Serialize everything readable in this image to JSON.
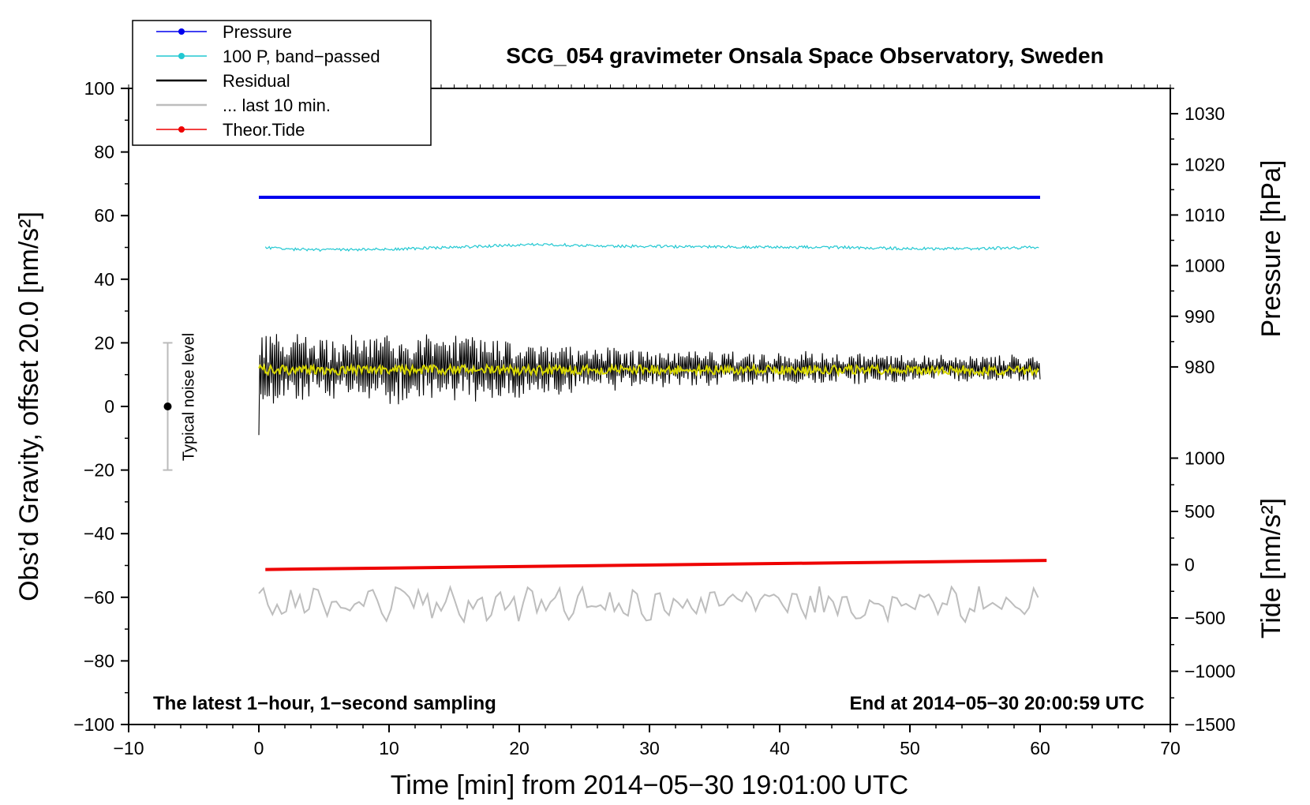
{
  "chart_data": {
    "type": "line",
    "title": "SCG_054 gravimeter Onsala Space Observatory, Sweden",
    "xlabel": "Time [min] from 2014−05−30 19:01:00 UTC",
    "ylabel": "Obs’d Gravity, offset 20.0 [nm/s²]",
    "ylabel_right_top": "Pressure [hPa]",
    "ylabel_right_bottom": "Tide [nm/s²]",
    "xlim": [
      -10,
      70
    ],
    "ylim": [
      -100,
      100
    ],
    "pressure_lim": [
      975,
      1035
    ],
    "tide_lim": [
      -1500,
      1500
    ],
    "x_ticks": [
      -10,
      0,
      10,
      20,
      30,
      40,
      50,
      60,
      70
    ],
    "x_tick_labels": [
      "−10",
      "0",
      "10",
      "20",
      "30",
      "40",
      "50",
      "60",
      "70"
    ],
    "y_ticks": [
      -100,
      -80,
      -60,
      -40,
      -20,
      0,
      20,
      40,
      60,
      80,
      100
    ],
    "y_tick_labels": [
      "−100",
      "−80",
      "−60",
      "−40",
      "−20",
      "0",
      "20",
      "40",
      "60",
      "80",
      "100"
    ],
    "pressure_ticks": [
      980,
      990,
      1000,
      1010,
      1020,
      1030
    ],
    "pressure_tick_labels": [
      "980",
      "990",
      "1000",
      "1010",
      "1020",
      "1030"
    ],
    "tide_ticks": [
      -1500,
      -1000,
      -500,
      0,
      500,
      1000
    ],
    "tide_tick_labels": [
      "−1500",
      "−1000",
      "−500",
      "0",
      "500",
      "1000"
    ],
    "legend": [
      {
        "name": "Pressure",
        "color": "#0000ee",
        "style": "line-dot"
      },
      {
        "name": "100 P, band−passed",
        "color": "#22c8d2",
        "style": "line-dot"
      },
      {
        "name": "Residual",
        "color": "#000000",
        "style": "line"
      },
      {
        "name": "... last 10 min.",
        "color": "#bdbdbd",
        "style": "line"
      },
      {
        "name": "Theor.Tide",
        "color": "#ee0000",
        "style": "line-dot"
      }
    ],
    "legend_position": "top-left",
    "annotations": {
      "bottom_left": "The latest 1−hour, 1−second sampling",
      "bottom_right": "End at 2014−05−30 20:00:59 UTC",
      "noise_label": "Typical noise level"
    },
    "noise_bar": {
      "x": -7,
      "center": 0,
      "low": -20,
      "high": 20
    },
    "series": [
      {
        "name": "Pressure",
        "axis": "pressure",
        "color": "#0000ee",
        "x_start": 0,
        "x_end": 60,
        "level": 1013.5
      },
      {
        "name": "100 P, band−passed",
        "axis": "left",
        "color": "#22c8d2",
        "x_start": 0.5,
        "x_end": 60,
        "profile_x": [
          0.5,
          2,
          5,
          10,
          15,
          20,
          22,
          25,
          30,
          35,
          40,
          45,
          50,
          55,
          60
        ],
        "profile_y": [
          50,
          49.5,
          49.2,
          49.5,
          50,
          50.8,
          51,
          50.5,
          50.3,
          50.2,
          50.1,
          50,
          49.6,
          49.6,
          50.1
        ]
      },
      {
        "name": "Residual",
        "axis": "left",
        "color": "#000000",
        "x_start": 0,
        "x_end": 60,
        "center": 12,
        "amp_x": [
          0,
          5,
          10,
          15,
          20,
          25,
          30,
          35,
          40,
          45,
          50,
          55,
          60
        ],
        "amp_y": [
          10,
          9,
          9,
          8.5,
          8,
          6,
          5,
          4.5,
          4,
          4.5,
          3.5,
          3.5,
          3.5
        ]
      },
      {
        "name": "Residual (smoothed)",
        "axis": "left",
        "color": "#d8d800",
        "x_start": 0,
        "x_end": 60,
        "center": 11.5
      },
      {
        "name": "... last 10 min.",
        "axis": "left",
        "color": "#bdbdbd",
        "x_start": 0,
        "x_end": 60,
        "center": -62
      },
      {
        "name": "Theor.Tide",
        "axis": "tide",
        "color": "#ee0000",
        "x": [
          0.5,
          60.5
        ],
        "y": [
          -45,
          40
        ]
      }
    ]
  }
}
